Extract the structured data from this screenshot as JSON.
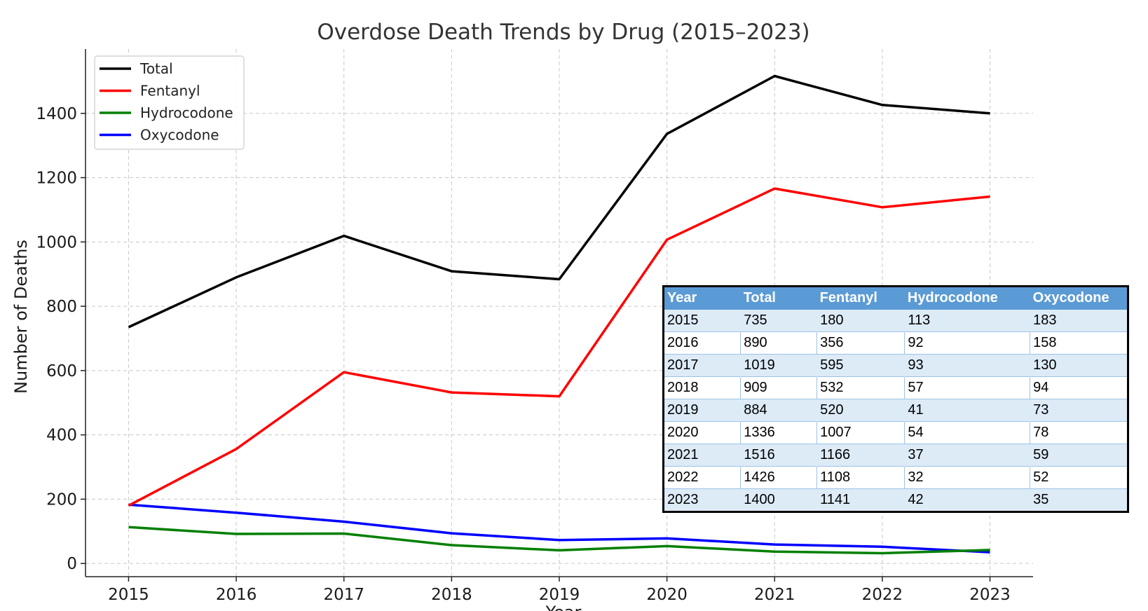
{
  "chart_data": {
    "type": "line",
    "title": "Overdose Death Trends by Drug (2015–2023)",
    "xlabel": "Year",
    "ylabel": "Number of Deaths",
    "x": [
      2015,
      2016,
      2017,
      2018,
      2019,
      2020,
      2021,
      2022,
      2023
    ],
    "x_tick_labels": [
      "2015",
      "2016",
      "2017",
      "2018",
      "2019",
      "2020",
      "2021",
      "2022",
      "2023"
    ],
    "y_ticks": [
      0,
      200,
      400,
      600,
      800,
      1000,
      1200,
      1400
    ],
    "y_tick_labels": [
      "0",
      "200",
      "400",
      "600",
      "800",
      "1000",
      "1200",
      "1400"
    ],
    "xlim": [
      2014.6,
      2023.4
    ],
    "ylim": [
      -41,
      1600
    ],
    "grid": true,
    "legend_position": "top-left",
    "series": [
      {
        "name": "Total",
        "color": "#000000",
        "values": [
          735,
          890,
          1019,
          909,
          884,
          1336,
          1516,
          1426,
          1400
        ]
      },
      {
        "name": "Fentanyl",
        "color": "#ff0000",
        "values": [
          180,
          356,
          595,
          532,
          520,
          1007,
          1166,
          1108,
          1141
        ]
      },
      {
        "name": "Hydrocodone",
        "color": "#008000",
        "values": [
          113,
          92,
          93,
          57,
          41,
          54,
          37,
          32,
          42
        ]
      },
      {
        "name": "Oxycodone",
        "color": "#0000ff",
        "values": [
          183,
          158,
          130,
          94,
          73,
          78,
          59,
          52,
          35
        ]
      }
    ]
  },
  "table": {
    "headers": [
      "Year",
      "Total",
      "Fentanyl",
      "Hydrocodone",
      "Oxycodone"
    ],
    "rows": [
      [
        "2015",
        "735",
        "180",
        "113",
        "183"
      ],
      [
        "2016",
        "890",
        "356",
        "92",
        "158"
      ],
      [
        "2017",
        "1019",
        "595",
        "93",
        "130"
      ],
      [
        "2018",
        "909",
        "532",
        "57",
        "94"
      ],
      [
        "2019",
        "884",
        "520",
        "41",
        "73"
      ],
      [
        "2020",
        "1336",
        "1007",
        "54",
        "78"
      ],
      [
        "2021",
        "1516",
        "1166",
        "37",
        "59"
      ],
      [
        "2022",
        "1426",
        "1108",
        "32",
        "52"
      ],
      [
        "2023",
        "1400",
        "1141",
        "42",
        "35"
      ]
    ]
  }
}
